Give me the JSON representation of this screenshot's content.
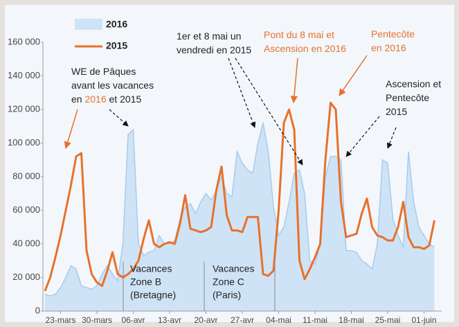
{
  "chart_data": {
    "type": "area-line",
    "categories": [
      null,
      null,
      null,
      "23-mars",
      null,
      null,
      null,
      null,
      null,
      null,
      "30-mars",
      null,
      null,
      null,
      null,
      null,
      null,
      "06-avr",
      null,
      null,
      null,
      null,
      null,
      null,
      "13-avr",
      null,
      null,
      null,
      null,
      null,
      null,
      "20-avr",
      null,
      null,
      null,
      null,
      null,
      null,
      "27-avr",
      null,
      null,
      null,
      null,
      null,
      null,
      "04-mai",
      null,
      null,
      null,
      null,
      null,
      null,
      "11-mai",
      null,
      null,
      null,
      null,
      null,
      null,
      "18-mai",
      null,
      null,
      null,
      null,
      null,
      null,
      "25-mai",
      null,
      null,
      null,
      null,
      null,
      null,
      "01-juin",
      null,
      null
    ],
    "series": [
      {
        "name": "2016",
        "kind": "area",
        "color": "#cfe3f6",
        "edge": "#a8cbec",
        "values": [
          10000,
          9000,
          10000,
          14000,
          20000,
          27000,
          25000,
          15000,
          14000,
          13000,
          15000,
          22000,
          27000,
          22000,
          18000,
          40000,
          105000,
          108000,
          40000,
          33000,
          35000,
          36000,
          45000,
          40000,
          40000,
          42000,
          55000,
          62000,
          64000,
          58000,
          65000,
          70000,
          66000,
          72000,
          80000,
          70000,
          68000,
          95000,
          88000,
          84000,
          82000,
          100000,
          112000,
          95000,
          62000,
          45000,
          50000,
          65000,
          82000,
          84000,
          70000,
          30000,
          28000,
          40000,
          80000,
          92000,
          92000,
          90000,
          36000,
          36000,
          35000,
          30000,
          28000,
          25000,
          40000,
          90000,
          88000,
          55000,
          45000,
          38000,
          95000,
          65000,
          50000,
          45000,
          40000,
          38000
        ]
      },
      {
        "name": "2015",
        "kind": "line",
        "color": "#e8702a",
        "values": [
          12000,
          20000,
          32000,
          45000,
          60000,
          75000,
          92000,
          94000,
          36000,
          22000,
          17000,
          15000,
          24000,
          35000,
          22000,
          20000,
          22000,
          25000,
          30000,
          43000,
          54000,
          40000,
          38000,
          40000,
          41000,
          40000,
          52000,
          69000,
          49000,
          48000,
          47000,
          48000,
          50000,
          72000,
          86000,
          57000,
          48000,
          48000,
          47000,
          56000,
          56000,
          56000,
          22000,
          21000,
          24000,
          60000,
          112000,
          120000,
          108000,
          30000,
          19000,
          25000,
          32000,
          40000,
          90000,
          124000,
          120000,
          65000,
          44000,
          45000,
          46000,
          58000,
          67000,
          50000,
          45000,
          44000,
          42000,
          42000,
          50000,
          65000,
          44000,
          38000,
          38000,
          37000,
          39000,
          54000
        ]
      }
    ],
    "ylim": [
      0,
      160000
    ],
    "yticks": [
      0,
      {
        "value": 20000,
        "label": "20 000"
      },
      {
        "value": 40000,
        "label": "40 000"
      },
      {
        "value": 60000,
        "label": "60 000"
      },
      {
        "value": 80000,
        "label": "80 000"
      },
      {
        "value": 100000,
        "label": "100 000"
      },
      {
        "value": 120000,
        "label": "120 000"
      },
      {
        "value": 140000,
        "label": "140 000"
      },
      {
        "value": 160000,
        "label": "160 000"
      }
    ],
    "annotations": [
      {
        "lines": [
          [
            {
              "text": "WE de Pâques"
            }
          ],
          [
            {
              "text": "avant les vacances"
            }
          ],
          [
            {
              "text": "en "
            },
            {
              "text": "2016",
              "color": "#e8702a"
            },
            {
              "text": " et 2015"
            }
          ]
        ]
      },
      {
        "lines": [
          [
            {
              "text": "1er et 8 mai un"
            }
          ],
          [
            {
              "text": "vendredi en 2015"
            }
          ]
        ]
      },
      {
        "lines": [
          [
            {
              "text": "Pont  du 8 mai et",
              "color": "#e8702a"
            }
          ],
          [
            {
              "text": "Ascension en 2016",
              "color": "#e8702a"
            }
          ]
        ]
      },
      {
        "lines": [
          [
            {
              "text": "Pentecôte",
              "color": "#e8702a"
            }
          ],
          [
            {
              "text": "en 2016",
              "color": "#e8702a"
            }
          ]
        ]
      },
      {
        "lines": [
          [
            {
              "text": "Ascension et"
            }
          ],
          [
            {
              "text": "Pentecôte"
            }
          ],
          [
            {
              "text": "2015"
            }
          ]
        ]
      }
    ],
    "periods": [
      {
        "lines": [
          "Vacances",
          "Zone B",
          "(Bretagne)"
        ]
      },
      {
        "lines": [
          "Vacances",
          "Zone C",
          "(Paris)"
        ]
      }
    ]
  }
}
